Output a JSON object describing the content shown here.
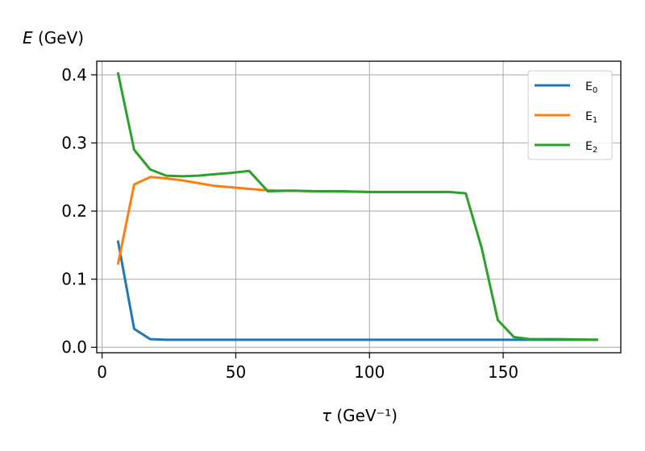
{
  "chart_data": {
    "type": "line",
    "ylabel": "E (GeV)",
    "xlabel": "τ (GeV⁻¹)",
    "xlim": [
      -2,
      194
    ],
    "ylim": [
      -0.008,
      0.42
    ],
    "xticks": [
      0,
      50,
      100,
      150
    ],
    "xtick_labels": [
      "0",
      "50",
      "100",
      "150"
    ],
    "yticks": [
      0.0,
      0.1,
      0.2,
      0.3,
      0.4
    ],
    "ytick_labels": [
      "0.0",
      "0.1",
      "0.2",
      "0.3",
      "0.4"
    ],
    "grid": true,
    "legend_position": "top-right",
    "series": [
      {
        "name": "E0",
        "color": "#1f77b4",
        "points": [
          [
            6,
            0.155
          ],
          [
            12,
            0.027
          ],
          [
            18,
            0.012
          ],
          [
            24,
            0.011
          ],
          [
            30,
            0.011
          ],
          [
            60,
            0.011
          ],
          [
            100,
            0.011
          ],
          [
            140,
            0.011
          ],
          [
            160,
            0.011
          ],
          [
            185,
            0.011
          ]
        ]
      },
      {
        "name": "E1",
        "color": "#ff7f0e",
        "points": [
          [
            6,
            0.123
          ],
          [
            12,
            0.239
          ],
          [
            18,
            0.25
          ],
          [
            24,
            0.248
          ],
          [
            30,
            0.245
          ],
          [
            36,
            0.241
          ],
          [
            42,
            0.237
          ],
          [
            48,
            0.235
          ],
          [
            54,
            0.233
          ],
          [
            60,
            0.231
          ],
          [
            66,
            0.23
          ],
          [
            72,
            0.23
          ],
          [
            80,
            0.229
          ],
          [
            100,
            0.228
          ],
          [
            130,
            0.228
          ]
        ]
      },
      {
        "name": "E2",
        "color": "#2ca02c",
        "points": [
          [
            6,
            0.402
          ],
          [
            12,
            0.29
          ],
          [
            18,
            0.261
          ],
          [
            24,
            0.252
          ],
          [
            30,
            0.251
          ],
          [
            36,
            0.252
          ],
          [
            42,
            0.254
          ],
          [
            48,
            0.256
          ],
          [
            55,
            0.259
          ],
          [
            62,
            0.229
          ],
          [
            70,
            0.23
          ],
          [
            80,
            0.229
          ],
          [
            90,
            0.229
          ],
          [
            100,
            0.228
          ],
          [
            110,
            0.228
          ],
          [
            120,
            0.228
          ],
          [
            130,
            0.228
          ],
          [
            136,
            0.226
          ],
          [
            142,
            0.145
          ],
          [
            148,
            0.04
          ],
          [
            154,
            0.015
          ],
          [
            160,
            0.012
          ],
          [
            170,
            0.012
          ],
          [
            185,
            0.011
          ]
        ]
      }
    ]
  }
}
